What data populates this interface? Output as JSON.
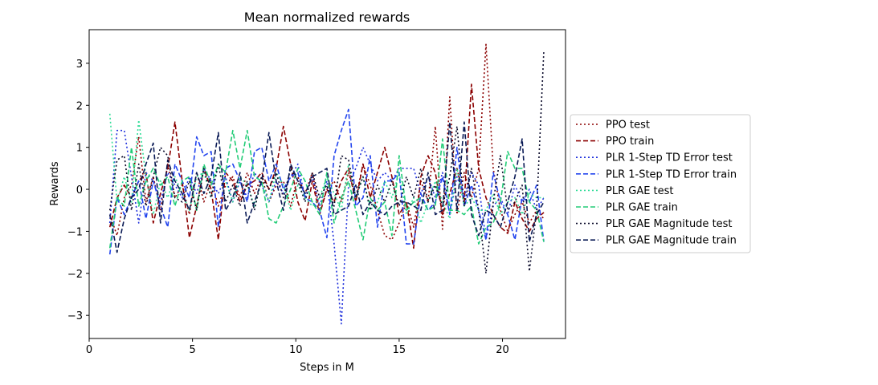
{
  "chart_data": {
    "type": "line",
    "title": "Mean normalized rewards",
    "xlabel": "Steps in M",
    "ylabel": "Rewards",
    "xlim": [
      0,
      23.05
    ],
    "ylim": [
      -3.55,
      3.8
    ],
    "xticks": [
      0,
      5,
      10,
      15,
      20
    ],
    "yticks": [
      -3,
      -2,
      -1,
      0,
      1,
      2,
      3
    ],
    "grid": false,
    "legend": "right-outside",
    "x": [
      1.0,
      1.35,
      1.7,
      2.05,
      2.4,
      2.75,
      3.1,
      3.45,
      3.8,
      4.15,
      4.5,
      4.85,
      5.2,
      5.55,
      5.9,
      6.25,
      6.6,
      6.95,
      7.3,
      7.65,
      8.0,
      8.35,
      8.7,
      9.05,
      9.4,
      9.75,
      10.1,
      10.45,
      10.8,
      11.15,
      11.5,
      11.85,
      12.2,
      12.55,
      12.9,
      13.25,
      13.6,
      13.95,
      14.3,
      14.65,
      15.0,
      15.35,
      15.7,
      16.05,
      16.4,
      16.75,
      17.1,
      17.45,
      17.8,
      18.15,
      18.5,
      18.85,
      19.2,
      19.55,
      19.9,
      20.25,
      20.6,
      20.95,
      21.3,
      21.65,
      22.0
    ],
    "series": [
      {
        "name": "PPO test",
        "color": "#8b0000",
        "dash": "dotted",
        "values": [
          -0.6,
          -1.1,
          -0.2,
          0.1,
          1.25,
          -0.3,
          0.3,
          -0.5,
          0.6,
          -0.2,
          0.1,
          -0.6,
          0.4,
          -0.3,
          0.2,
          -0.4,
          0.1,
          0.3,
          -0.2,
          0.4,
          -0.1,
          0.3,
          -0.3,
          0.1,
          0.2,
          -0.4,
          0.3,
          -0.1,
          0.4,
          -0.5,
          0.0,
          0.2,
          -0.3,
          0.4,
          -0.2,
          0.6,
          0.1,
          -0.5,
          -1.1,
          -1.2,
          -0.8,
          -0.3,
          -0.9,
          0.2,
          -0.3,
          1.5,
          -0.95,
          2.2,
          -0.6,
          0.4,
          -0.2,
          0.5,
          3.45,
          0.5,
          -0.5,
          -1.0,
          -0.6,
          -0.3,
          -0.8,
          -0.5,
          -0.7
        ]
      },
      {
        "name": "PPO train",
        "color": "#8b0000",
        "dash": "dashed",
        "values": [
          -0.9,
          -0.2,
          0.1,
          -0.2,
          0.2,
          0.4,
          -0.8,
          -0.1,
          0.5,
          1.6,
          0.2,
          -1.15,
          -0.4,
          0.5,
          0.0,
          -1.2,
          0.4,
          0.2,
          -0.3,
          0.1,
          0.2,
          0.4,
          0.0,
          0.5,
          1.5,
          0.6,
          -0.3,
          -0.75,
          0.2,
          -0.6,
          0.0,
          -0.3,
          0.2,
          0.5,
          -0.3,
          0.6,
          -0.2,
          0.4,
          1.0,
          0.3,
          -0.6,
          -0.3,
          -1.4,
          0.3,
          0.8,
          0.4,
          -0.6,
          -0.1,
          0.5,
          -0.3,
          2.5,
          0.5,
          -0.2,
          -0.6,
          -0.9,
          -1.05,
          -0.3,
          -0.7,
          -1.0,
          -0.7,
          -0.55
        ]
      },
      {
        "name": "PLR 1-Step TD Error test",
        "color": "#2233dd",
        "dash": "dotted",
        "values": [
          -0.8,
          1.4,
          1.4,
          0.3,
          -0.8,
          0.4,
          0.2,
          -0.3,
          0.4,
          0.1,
          -0.2,
          0.3,
          -0.1,
          0.5,
          0.2,
          -0.1,
          0.3,
          -0.3,
          0.2,
          -0.2,
          0.4,
          0.1,
          -0.3,
          0.2,
          -0.1,
          0.3,
          0.6,
          -0.2,
          0.3,
          -0.4,
          0.2,
          -1.3,
          -3.2,
          0.1,
          0.5,
          1.0,
          0.6,
          0.2,
          0.4,
          0.2,
          0.5,
          0.5,
          0.5,
          -0.1,
          0.3,
          -0.2,
          0.4,
          -0.6,
          0.3,
          -0.2,
          0.4,
          0.1,
          -1.2,
          -0.4,
          -0.2,
          -0.6,
          0.1,
          -0.3,
          0.0,
          -0.5,
          -0.2
        ]
      },
      {
        "name": "PLR 1-Step TD Error train",
        "color": "#2244ee",
        "dash": "dashed",
        "values": [
          -1.55,
          -0.2,
          -0.6,
          -0.2,
          0.2,
          -0.7,
          0.2,
          -0.4,
          -0.9,
          0.6,
          0.2,
          -0.2,
          1.25,
          0.8,
          0.9,
          -0.9,
          0.5,
          0.6,
          0.2,
          -0.3,
          0.9,
          1.0,
          0.2,
          0.6,
          0.0,
          0.3,
          0.4,
          -0.2,
          -0.3,
          -0.5,
          -1.15,
          0.8,
          1.4,
          1.9,
          -0.4,
          -0.2,
          0.8,
          -0.9,
          0.2,
          0.2,
          0.4,
          -1.3,
          -1.3,
          -0.1,
          -0.5,
          -0.3,
          0.3,
          -0.6,
          1.0,
          -0.4,
          0.1,
          -0.5,
          -1.2,
          0.4,
          -0.3,
          -0.6,
          -1.2,
          -0.2,
          -0.3,
          0.1,
          -1.25
        ]
      },
      {
        "name": "PLR GAE test",
        "color": "#33dd99",
        "dash": "dotted",
        "values": [
          1.8,
          -0.3,
          0.3,
          -0.3,
          1.65,
          0.3,
          -0.6,
          0.2,
          -0.2,
          0.3,
          -0.1,
          -0.5,
          0.3,
          0.4,
          -0.2,
          0.6,
          0.2,
          -0.3,
          0.3,
          0.1,
          -0.4,
          0.2,
          -0.3,
          0.4,
          0.1,
          -0.5,
          0.1,
          -0.2,
          -0.4,
          -0.2,
          0.3,
          -0.1,
          -0.5,
          0.6,
          -0.2,
          0.3,
          -0.5,
          -0.3,
          0.2,
          -0.2,
          0.4,
          -0.6,
          -0.2,
          -0.8,
          -0.3,
          0.2,
          -0.3,
          -0.7,
          0.5,
          -0.4,
          -0.2,
          -0.5,
          -0.5,
          -0.1,
          -0.6,
          -0.3,
          -0.2,
          -0.6,
          -0.1,
          -0.2,
          -0.2
        ]
      },
      {
        "name": "PLR GAE train",
        "color": "#22cc77",
        "dash": "dashed",
        "values": [
          -1.4,
          -0.2,
          -0.4,
          1.0,
          -0.4,
          0.2,
          0.5,
          0.1,
          0.3,
          -0.4,
          0.2,
          0.3,
          -0.5,
          0.6,
          0.1,
          0.6,
          0.4,
          1.4,
          0.5,
          1.4,
          0.3,
          0.2,
          -0.7,
          -0.8,
          -0.4,
          0.0,
          0.5,
          0.2,
          -0.3,
          -0.6,
          0.4,
          -0.8,
          -0.2,
          0.2,
          -0.5,
          -1.2,
          -0.2,
          -0.5,
          -0.3,
          -1.1,
          0.8,
          -0.5,
          -0.3,
          -0.2,
          -0.5,
          -0.4,
          1.2,
          -0.5,
          -0.5,
          -0.6,
          -0.4,
          -1.3,
          -0.9,
          -0.8,
          -0.3,
          0.9,
          0.5,
          0.5,
          -0.3,
          -0.5,
          -1.25
        ]
      },
      {
        "name": "PLR GAE Magnitude test",
        "color": "#0a0a2a",
        "dash": "dotted",
        "values": [
          -0.5,
          0.7,
          0.8,
          -0.5,
          0.6,
          -0.4,
          0.3,
          1.0,
          0.8,
          -0.2,
          -0.3,
          0.2,
          -0.5,
          0.5,
          -0.2,
          0.6,
          -0.3,
          0.1,
          -0.4,
          0.2,
          -0.5,
          0.3,
          0.0,
          0.4,
          -0.2,
          0.5,
          0.2,
          -0.3,
          0.4,
          -0.2,
          0.1,
          -0.4,
          0.8,
          0.7,
          -0.2,
          0.3,
          -0.5,
          0.1,
          -0.3,
          0.2,
          -0.4,
          0.3,
          -0.2,
          0.5,
          -0.3,
          0.1,
          -0.4,
          0.3,
          1.5,
          -0.4,
          0.5,
          -0.5,
          -2.0,
          -0.3,
          0.8,
          -0.5,
          -0.3,
          0.1,
          -1.95,
          -0.5,
          3.3
        ]
      },
      {
        "name": "PLR GAE Magnitude train",
        "color": "#0a1a55",
        "dash": "dashed",
        "values": [
          -0.6,
          -1.5,
          -0.7,
          -0.2,
          0.0,
          0.6,
          1.1,
          -0.8,
          0.7,
          0.2,
          -0.1,
          -0.5,
          0.4,
          -0.1,
          0.3,
          1.35,
          -0.5,
          -0.2,
          0.4,
          -0.8,
          -0.3,
          0.2,
          1.35,
          0.2,
          -0.5,
          0.6,
          0.2,
          -0.1,
          0.3,
          0.4,
          0.5,
          -0.6,
          -0.5,
          -0.4,
          0.1,
          -0.6,
          -0.3,
          -0.5,
          -0.6,
          -0.4,
          -0.3,
          -0.3,
          -0.4,
          -0.5,
          0.4,
          -0.6,
          -0.5,
          1.6,
          -0.5,
          1.6,
          -0.6,
          -1.1,
          -0.5,
          -0.6,
          -0.9,
          -0.3,
          0.3,
          1.2,
          -1.25,
          -0.6,
          -0.3
        ]
      }
    ]
  }
}
